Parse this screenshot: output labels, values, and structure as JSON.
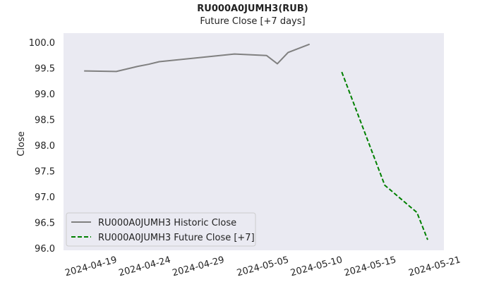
{
  "chart_data": {
    "type": "line",
    "title": "RU000A0JUMH3(RUB)",
    "subtitle": "Future Close [+7 days]",
    "xlabel": "",
    "ylabel": "Close",
    "ylim": [
      96.0,
      100.0
    ],
    "xlim": [
      "2024-04-17",
      "2024-05-20"
    ],
    "y_ticks": [
      "96.0",
      "96.5",
      "97.0",
      "97.5",
      "98.0",
      "98.5",
      "99.0",
      "99.5",
      "100.0"
    ],
    "x_ticks": [
      "2024-04-19",
      "2024-04-24",
      "2024-04-29",
      "2024-05-05",
      "2024-05-10",
      "2024-05-15",
      "2024-05-21"
    ],
    "grid": false,
    "legend_position": "lower-left",
    "background_color": "#eaeaf2",
    "series": [
      {
        "name": "RU000A0JUMH3 Historic Close",
        "color": "#808080",
        "style": "solid",
        "points": [
          {
            "x": "2024-04-18",
            "y": 99.45
          },
          {
            "x": "2024-04-21",
            "y": 99.44
          },
          {
            "x": "2024-04-23",
            "y": 99.54
          },
          {
            "x": "2024-04-24",
            "y": 99.58
          },
          {
            "x": "2024-04-25",
            "y": 99.63
          },
          {
            "x": "2024-05-02",
            "y": 99.78
          },
          {
            "x": "2024-05-05",
            "y": 99.75
          },
          {
            "x": "2024-05-06",
            "y": 99.59
          },
          {
            "x": "2024-05-07",
            "y": 99.81
          },
          {
            "x": "2024-05-09",
            "y": 99.97
          }
        ]
      },
      {
        "name": "RU000A0JUMH3 Future Close [+7]",
        "color": "#008000",
        "style": "dashed",
        "points": [
          {
            "x": "2024-05-12",
            "y": 99.43
          },
          {
            "x": "2024-05-16",
            "y": 97.23
          },
          {
            "x": "2024-05-19",
            "y": 96.7
          },
          {
            "x": "2024-05-20",
            "y": 96.17
          }
        ]
      }
    ]
  }
}
